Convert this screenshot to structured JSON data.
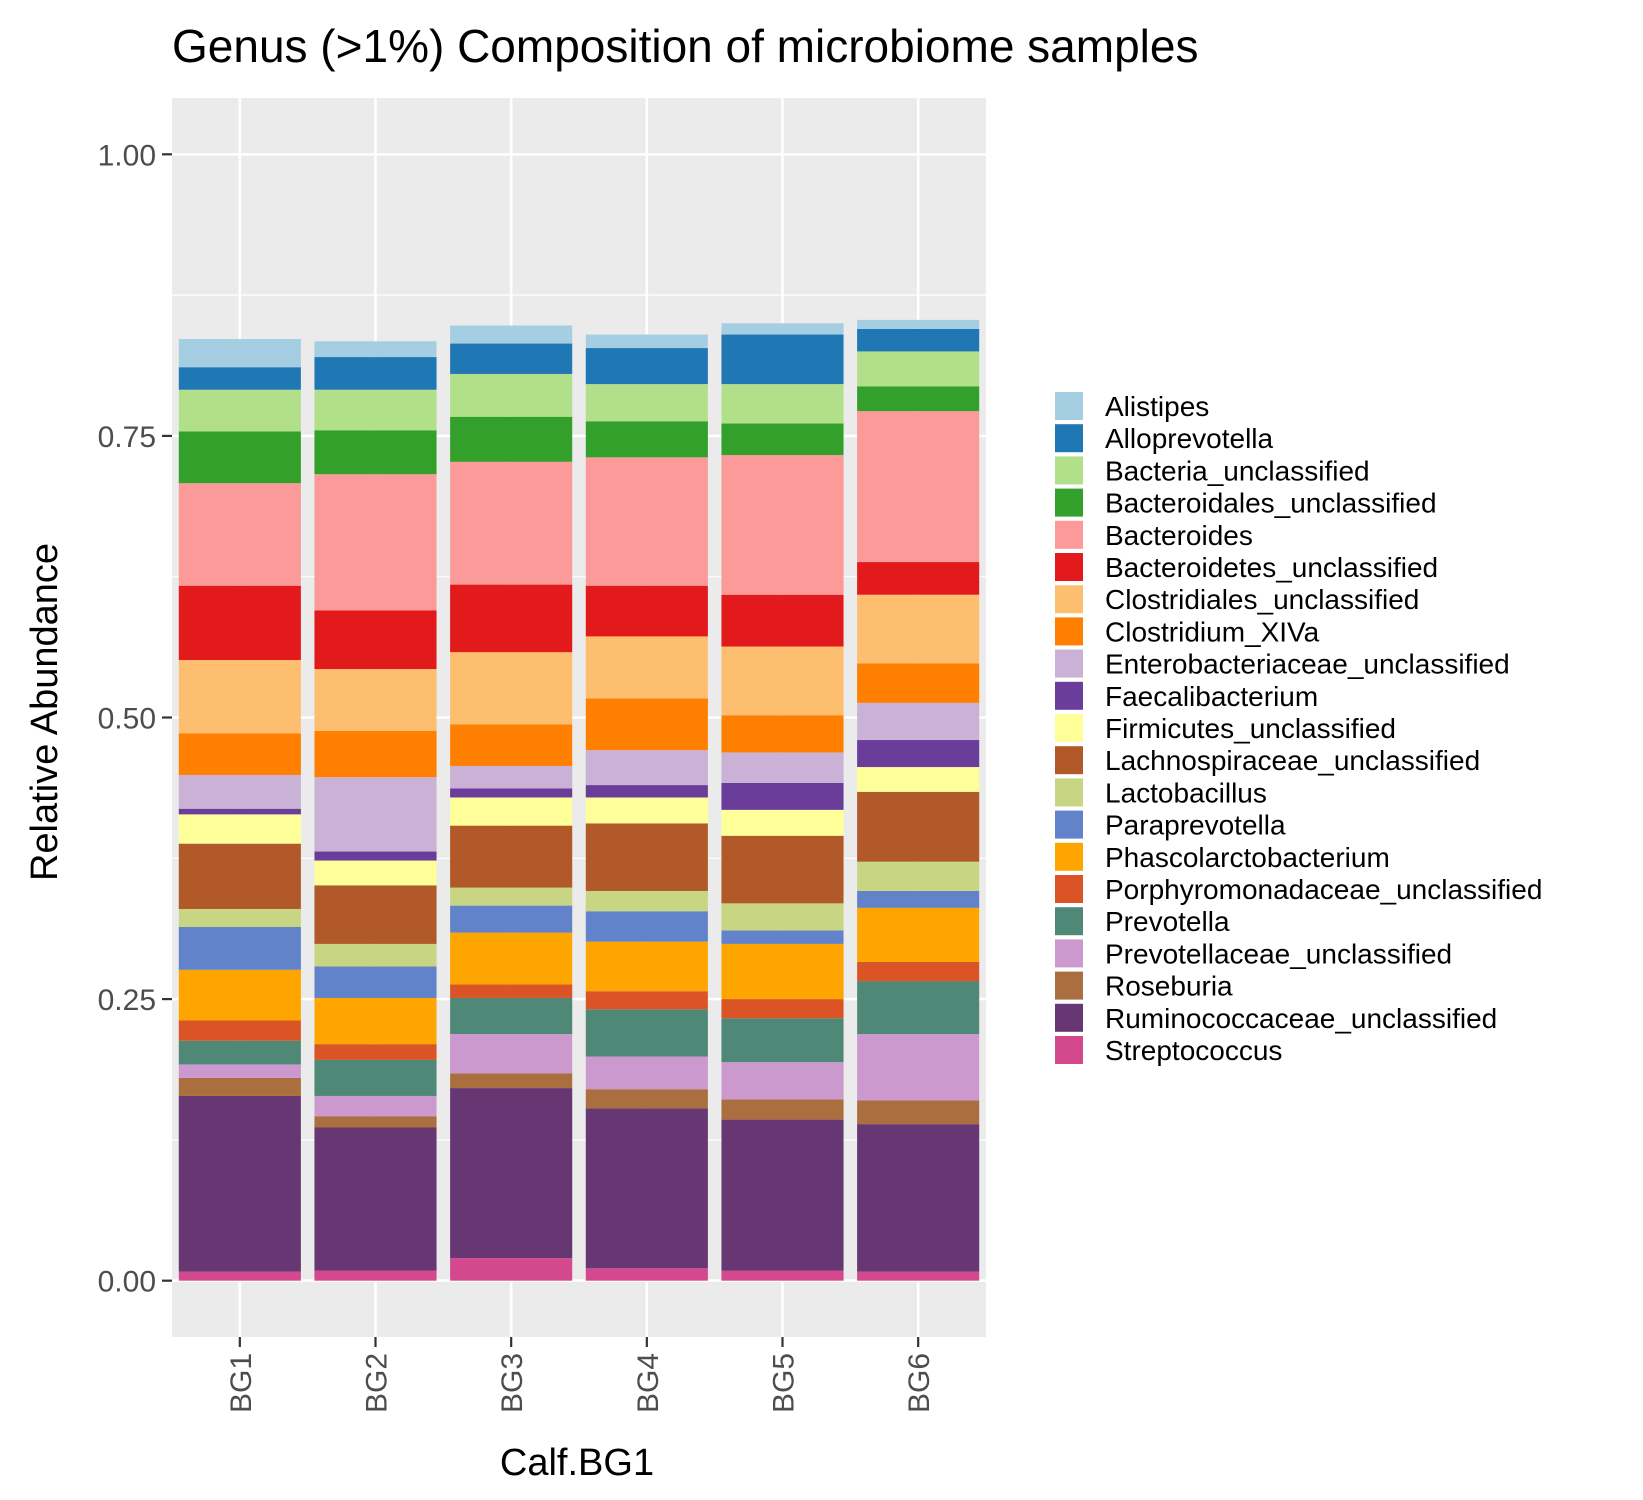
{
  "chart_data": {
    "type": "bar",
    "stacked": true,
    "title": "Genus (>1%) Composition of microbiome samples",
    "xlabel": "Calf.BG1",
    "ylabel": "Relative Abundance",
    "ylim": [
      -0.05,
      1.05
    ],
    "yticks": [
      0.0,
      0.25,
      0.5,
      0.75,
      1.0
    ],
    "ytick_labels": [
      "0.00",
      "0.25",
      "0.50",
      "0.75",
      "1.00"
    ],
    "grid": true,
    "legend_position": "right",
    "categories": [
      "BG1",
      "BG2",
      "BG3",
      "BG4",
      "BG5",
      "BG6"
    ],
    "series": [
      {
        "name": "Streptococcus",
        "color": "#D4488E",
        "values": [
          0.008,
          0.009,
          0.02,
          0.011,
          0.009,
          0.008
        ]
      },
      {
        "name": "Ruminococcaceae_unclassified",
        "color": "#663772",
        "values": [
          0.156,
          0.127,
          0.151,
          0.142,
          0.134,
          0.131
        ]
      },
      {
        "name": "Roseburia",
        "color": "#AB6E3F",
        "values": [
          0.016,
          0.01,
          0.013,
          0.017,
          0.018,
          0.021
        ]
      },
      {
        "name": "Prevotellaceae_unclassified",
        "color": "#CC99CF",
        "values": [
          0.012,
          0.018,
          0.035,
          0.029,
          0.033,
          0.059
        ]
      },
      {
        "name": "Prevotella",
        "color": "#508877",
        "values": [
          0.021,
          0.032,
          0.032,
          0.042,
          0.039,
          0.047
        ]
      },
      {
        "name": "Porphyromonadaceae_unclassified",
        "color": "#DB5426",
        "values": [
          0.018,
          0.014,
          0.012,
          0.016,
          0.017,
          0.017
        ]
      },
      {
        "name": "Phascolarctobacterium",
        "color": "#FFA500",
        "values": [
          0.045,
          0.041,
          0.046,
          0.044,
          0.049,
          0.048
        ]
      },
      {
        "name": "Paraprevotella",
        "color": "#6283C9",
        "values": [
          0.038,
          0.028,
          0.024,
          0.027,
          0.012,
          0.015
        ]
      },
      {
        "name": "Lactobacillus",
        "color": "#C8D684",
        "values": [
          0.016,
          0.02,
          0.016,
          0.018,
          0.024,
          0.026
        ]
      },
      {
        "name": "Lachnospiraceae_unclassified",
        "color": "#B15928",
        "values": [
          0.058,
          0.052,
          0.055,
          0.06,
          0.06,
          0.062
        ]
      },
      {
        "name": "Firmicutes_unclassified",
        "color": "#FFFF99",
        "values": [
          0.026,
          0.022,
          0.025,
          0.023,
          0.023,
          0.022
        ]
      },
      {
        "name": "Faecalibacterium",
        "color": "#6A3D9A",
        "values": [
          0.005,
          0.008,
          0.008,
          0.011,
          0.024,
          0.024
        ]
      },
      {
        "name": "Enterobacteriaceae_unclassified",
        "color": "#CAB2D6",
        "values": [
          0.03,
          0.066,
          0.02,
          0.031,
          0.027,
          0.033
        ]
      },
      {
        "name": "Clostridium_XIVa",
        "color": "#FF7F00",
        "values": [
          0.037,
          0.041,
          0.037,
          0.046,
          0.033,
          0.035
        ]
      },
      {
        "name": "Clostridiales_unclassified",
        "color": "#FDBF6F",
        "values": [
          0.065,
          0.055,
          0.064,
          0.055,
          0.061,
          0.061
        ]
      },
      {
        "name": "Bacteroidetes_unclassified",
        "color": "#E31A1C",
        "values": [
          0.066,
          0.052,
          0.06,
          0.045,
          0.046,
          0.029
        ]
      },
      {
        "name": "Bacteroides",
        "color": "#FB9A99",
        "values": [
          0.091,
          0.121,
          0.109,
          0.114,
          0.124,
          0.134
        ]
      },
      {
        "name": "Bacteroidales_unclassified",
        "color": "#33A02C",
        "values": [
          0.046,
          0.039,
          0.04,
          0.032,
          0.028,
          0.022
        ]
      },
      {
        "name": "Bacteria_unclassified",
        "color": "#B2DF8A",
        "values": [
          0.037,
          0.036,
          0.038,
          0.033,
          0.035,
          0.031
        ]
      },
      {
        "name": "Alloprevotella",
        "color": "#1F78B4",
        "values": [
          0.02,
          0.029,
          0.027,
          0.032,
          0.044,
          0.02
        ]
      },
      {
        "name": "Alistipes",
        "color": "#A6CEE3",
        "values": [
          0.025,
          0.014,
          0.016,
          0.012,
          0.01,
          0.008
        ]
      }
    ]
  },
  "legend": {
    "items": [
      {
        "label": "Alistipes",
        "color": "#A6CEE3"
      },
      {
        "label": "Alloprevotella",
        "color": "#1F78B4"
      },
      {
        "label": "Bacteria_unclassified",
        "color": "#B2DF8A"
      },
      {
        "label": "Bacteroidales_unclassified",
        "color": "#33A02C"
      },
      {
        "label": "Bacteroides",
        "color": "#FB9A99"
      },
      {
        "label": "Bacteroidetes_unclassified",
        "color": "#E31A1C"
      },
      {
        "label": "Clostridiales_unclassified",
        "color": "#FDBF6F"
      },
      {
        "label": "Clostridium_XIVa",
        "color": "#FF7F00"
      },
      {
        "label": "Enterobacteriaceae_unclassified",
        "color": "#CAB2D6"
      },
      {
        "label": "Faecalibacterium",
        "color": "#6A3D9A"
      },
      {
        "label": "Firmicutes_unclassified",
        "color": "#FFFF99"
      },
      {
        "label": "Lachnospiraceae_unclassified",
        "color": "#B15928"
      },
      {
        "label": "Lactobacillus",
        "color": "#C8D684"
      },
      {
        "label": "Paraprevotella",
        "color": "#6283C9"
      },
      {
        "label": "Phascolarctobacterium",
        "color": "#FFA500"
      },
      {
        "label": "Porphyromonadaceae_unclassified",
        "color": "#DB5426"
      },
      {
        "label": "Prevotella",
        "color": "#508877"
      },
      {
        "label": "Prevotellaceae_unclassified",
        "color": "#CC99CF"
      },
      {
        "label": "Roseburia",
        "color": "#AB6E3F"
      },
      {
        "label": "Ruminococcaceae_unclassified",
        "color": "#663772"
      },
      {
        "label": "Streptococcus",
        "color": "#D4488E"
      }
    ]
  },
  "style": {
    "panel_background": "#EBEBEB",
    "grid_color": "#FFFFFF",
    "tick_color": "#333333"
  }
}
